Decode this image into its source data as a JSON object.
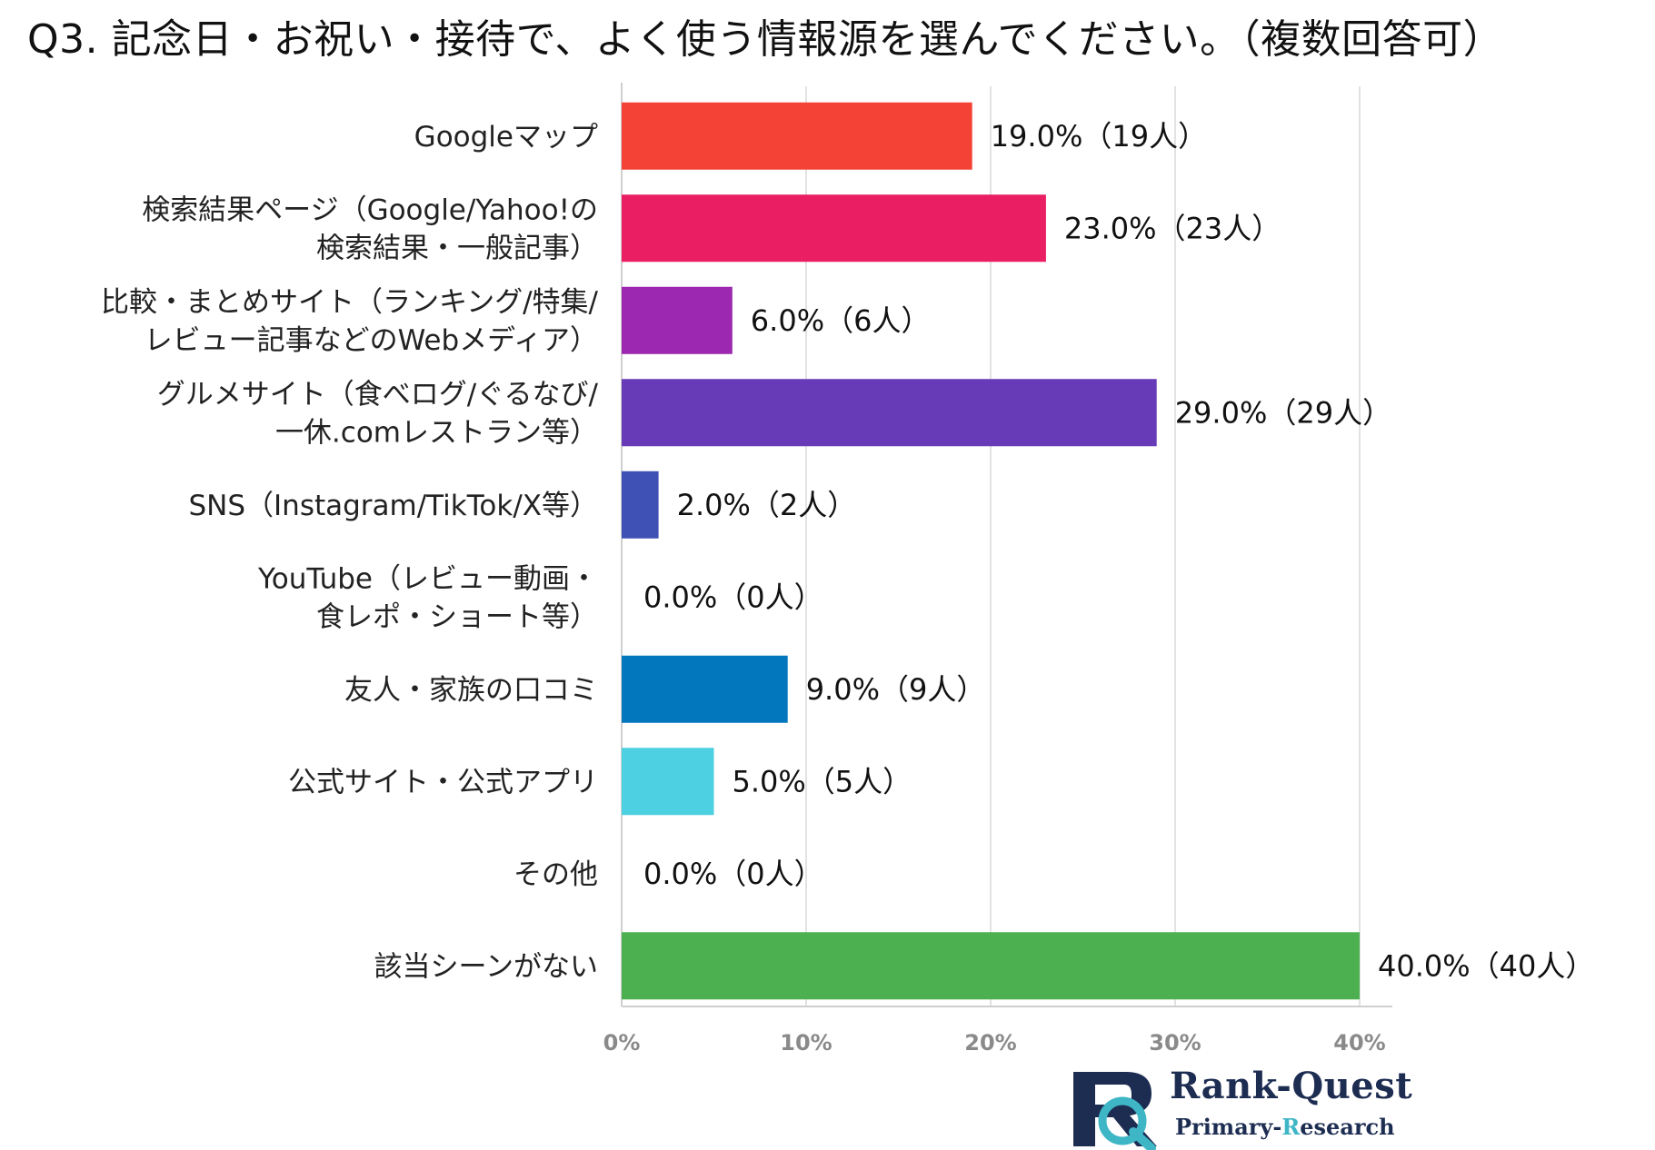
{
  "title": "Q3. 記念日・お祝い・接待で、よく使う情報源を選んでください。（複数回答可）",
  "chart_data": {
    "type": "bar",
    "orientation": "horizontal",
    "title": "Q3. 記念日・お祝い・接待で、よく使う情報源を選んでください。（複数回答可）",
    "xlim": [
      0,
      40
    ],
    "x_ticks": [
      "0%",
      "10%",
      "20%",
      "30%",
      "40%"
    ],
    "grid": true,
    "categories": [
      [
        "Googleマップ"
      ],
      [
        "検索結果ページ（Google/Yahoo!の",
        "検索結果・一般記事）"
      ],
      [
        "比較・まとめサイト（ランキング/特集/",
        "レビュー記事などのWebメディア）"
      ],
      [
        "グルメサイト（食べログ/ぐるなび/",
        "一休.comレストラン等）"
      ],
      [
        "SNS（Instagram/TikTok/X等）"
      ],
      [
        "YouTube（レビュー動画・",
        "食レポ・ショート等）"
      ],
      [
        "友人・家族の口コミ"
      ],
      [
        "公式サイト・公式アプリ"
      ],
      [
        "その他"
      ],
      [
        "該当シーンがない"
      ]
    ],
    "values": [
      19.0,
      23.0,
      6.0,
      29.0,
      2.0,
      0.0,
      9.0,
      5.0,
      0.0,
      40.0
    ],
    "data_labels": [
      "19.0%（19人）",
      "23.0%（23人）",
      "6.0%（6人）",
      "29.0%（29人）",
      "2.0%（2人）",
      "0.0%（0人）",
      "9.0%（9人）",
      "5.0%（5人）",
      "0.0%（0人）",
      "40.0%（40人）"
    ],
    "colors": [
      "#f44336",
      "#e91e63",
      "#9c27b0",
      "#673ab7",
      "#3f51b5",
      "#2196f3",
      "#0277bd",
      "#4dd0e1",
      "#26a69a",
      "#4caf50"
    ]
  },
  "logo": {
    "brand": "Rank-Quest",
    "tagline_primary": "Primary-",
    "tagline_highlight": "R",
    "tagline_rest": "esearch",
    "colors": {
      "navy": "#1d2d52",
      "teal": "#3fb6c6"
    }
  }
}
